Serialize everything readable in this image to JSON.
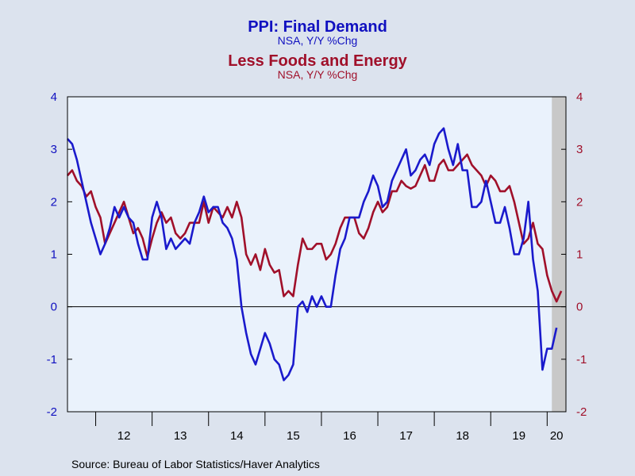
{
  "chart_data": {
    "type": "line",
    "titles": [
      {
        "title": "PPI: Final Demand",
        "subtitle": "NSA, Y/Y %Chg",
        "color": "#1010c0"
      },
      {
        "title": "Less Foods and Energy",
        "subtitle": "NSA, Y/Y %Chg",
        "color": "#a0102a"
      }
    ],
    "source": "Source:  Bureau of Labor Statistics/Haver Analytics",
    "x_tick_labels": [
      "12",
      "13",
      "14",
      "15",
      "16",
      "17",
      "18",
      "19",
      "20"
    ],
    "x_range": [
      2011.5,
      2020.333
    ],
    "ylim": [
      -2,
      4
    ],
    "y_ticks": [
      -2,
      -1,
      0,
      1,
      2,
      3,
      4
    ],
    "y_tick_labels_left": [
      "-2",
      "-1",
      "0",
      "1",
      "2",
      "3",
      "4"
    ],
    "y_tick_labels_right": [
      "-2",
      "-1",
      "0",
      "1",
      "2",
      "3",
      "4"
    ],
    "zero_line": true,
    "recession_shading": [
      {
        "start": 2020.083,
        "end": 2020.333,
        "color": "#c8c8c8"
      }
    ],
    "series": [
      {
        "color": "#1a1acc",
        "start_year": 2011,
        "start_month": 7,
        "values": [
          3.2,
          3.1,
          2.8,
          2.4,
          2.0,
          1.6,
          1.3,
          1.0,
          1.2,
          1.5,
          1.9,
          1.7,
          1.9,
          1.7,
          1.6,
          1.2,
          0.9,
          0.9,
          1.7,
          2.0,
          1.7,
          1.1,
          1.3,
          1.1,
          1.2,
          1.3,
          1.2,
          1.6,
          1.8,
          2.1,
          1.8,
          1.9,
          1.9,
          1.6,
          1.5,
          1.3,
          0.9,
          0.0,
          -0.5,
          -0.9,
          -1.1,
          -0.8,
          -0.5,
          -0.7,
          -1.0,
          -1.1,
          -1.4,
          -1.3,
          -1.1,
          0.0,
          0.1,
          -0.1,
          0.2,
          0.0,
          0.2,
          0.0,
          0.0,
          0.6,
          1.1,
          1.3,
          1.7,
          1.7,
          1.7,
          2.0,
          2.2,
          2.5,
          2.3,
          1.9,
          2.0,
          2.4,
          2.6,
          2.8,
          3.0,
          2.5,
          2.6,
          2.8,
          2.9,
          2.7,
          3.1,
          3.3,
          3.4,
          3.0,
          2.7,
          3.1,
          2.6,
          2.6,
          1.9,
          1.9,
          2.0,
          2.4,
          2.0,
          1.6,
          1.6,
          1.9,
          1.5,
          1.0,
          1.0,
          1.3,
          2.0,
          0.9,
          0.3,
          -1.2,
          -0.8,
          -0.8,
          -0.4
        ]
      },
      {
        "color": "#a0102a",
        "start_year": 2011,
        "start_month": 7,
        "values": [
          2.5,
          2.6,
          2.4,
          2.3,
          2.1,
          2.2,
          1.9,
          1.7,
          1.2,
          1.4,
          1.6,
          1.8,
          2.0,
          1.7,
          1.4,
          1.5,
          1.3,
          0.95,
          1.3,
          1.6,
          1.8,
          1.6,
          1.7,
          1.4,
          1.3,
          1.4,
          1.6,
          1.6,
          1.6,
          2.0,
          1.6,
          1.9,
          1.8,
          1.7,
          1.9,
          1.7,
          2.0,
          1.7,
          1.0,
          0.8,
          1.0,
          0.7,
          1.1,
          0.8,
          0.65,
          0.7,
          0.2,
          0.3,
          0.2,
          0.8,
          1.3,
          1.1,
          1.1,
          1.2,
          1.2,
          0.9,
          1.0,
          1.2,
          1.5,
          1.7,
          1.7,
          1.7,
          1.4,
          1.3,
          1.5,
          1.8,
          2.0,
          1.8,
          1.9,
          2.2,
          2.2,
          2.4,
          2.3,
          2.25,
          2.3,
          2.5,
          2.7,
          2.4,
          2.4,
          2.7,
          2.8,
          2.6,
          2.6,
          2.7,
          2.8,
          2.9,
          2.7,
          2.6,
          2.5,
          2.3,
          2.5,
          2.4,
          2.2,
          2.2,
          2.3,
          2.0,
          1.6,
          1.2,
          1.3,
          1.6,
          1.2,
          1.1,
          0.6,
          0.3,
          0.1,
          0.3
        ]
      }
    ]
  }
}
